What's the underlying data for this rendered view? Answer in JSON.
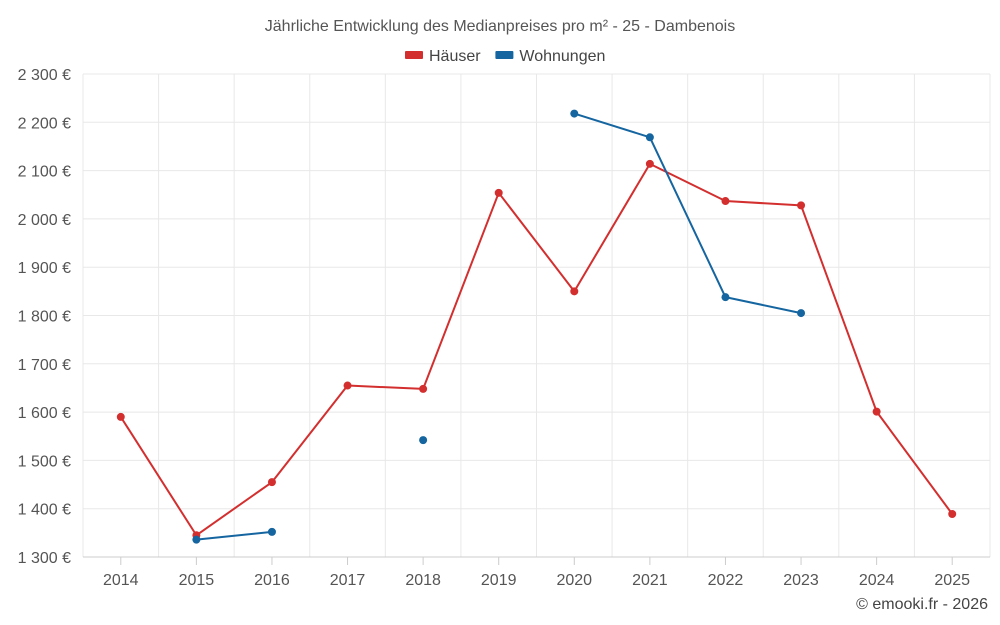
{
  "chart_data": {
    "type": "line",
    "title": "Jährliche Entwicklung des Medianpreises pro m² - 25 - Dambenois",
    "categories": [
      "2014",
      "2015",
      "2016",
      "2017",
      "2018",
      "2019",
      "2020",
      "2021",
      "2022",
      "2023",
      "2024",
      "2025"
    ],
    "ylim": [
      1300,
      2300
    ],
    "y_ticks": [
      1300,
      1400,
      1500,
      1600,
      1700,
      1800,
      1900,
      2000,
      2100,
      2200,
      2300
    ],
    "y_tick_labels": [
      "1 300 €",
      "1 400 €",
      "1 500 €",
      "1 600 €",
      "1 700 €",
      "1 800 €",
      "1 900 €",
      "2 000 €",
      "2 100 €",
      "2 200 €",
      "2 300 €"
    ],
    "grid": true,
    "legend_position": "top-center",
    "series": [
      {
        "name": "Häuser",
        "color": "#d32f2f",
        "values": [
          1590,
          1345,
          1455,
          1655,
          1648,
          2054,
          1850,
          2114,
          2037,
          2028,
          1601,
          1389
        ]
      },
      {
        "name": "Wohnungen",
        "color": "#1565a0",
        "values": [
          null,
          1336,
          1352,
          null,
          1542,
          null,
          2218,
          2169,
          1838,
          1805,
          null,
          null
        ]
      }
    ]
  },
  "credit": "© emooki.fr - 2026"
}
